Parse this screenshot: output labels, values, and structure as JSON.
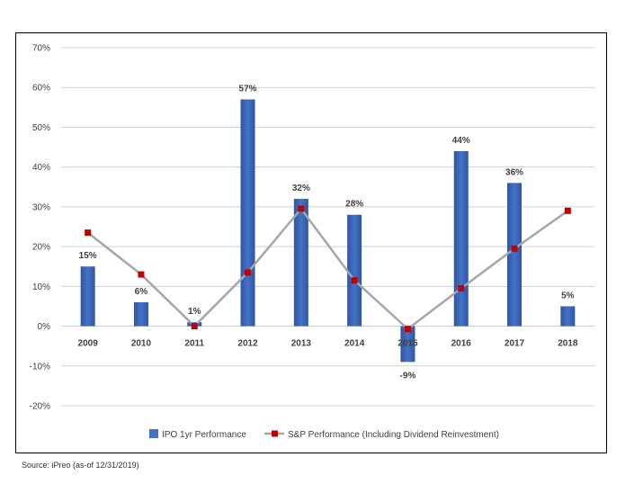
{
  "source_note": "Source: iPreo (as-of 12/31/2019)",
  "colors": {
    "bar": "#4472C4",
    "bar_dark": "#2F55A4",
    "line": "#A6A6A6",
    "marker": "#C00000",
    "grid": "#D0D0D0",
    "axis_text": "#404040"
  },
  "chart_data": {
    "type": "bar",
    "categories": [
      "2009",
      "2010",
      "2011",
      "2012",
      "2013",
      "2014",
      "2015",
      "2016",
      "2017",
      "2018"
    ],
    "ylim": [
      -0.2,
      0.7
    ],
    "yticks": [
      -0.2,
      -0.1,
      0,
      0.1,
      0.2,
      0.3,
      0.4,
      0.5,
      0.6,
      0.7
    ],
    "ytick_labels": [
      "-20%",
      "-10%",
      "0%",
      "10%",
      "20%",
      "30%",
      "40%",
      "50%",
      "60%",
      "70%"
    ],
    "grid": true,
    "legend_position": "bottom",
    "series": [
      {
        "name": "IPO 1yr Performance",
        "type": "bar",
        "values": [
          0.15,
          0.06,
          0.01,
          0.57,
          0.32,
          0.28,
          -0.09,
          0.44,
          0.36,
          0.05
        ],
        "data_labels": [
          "15%",
          "6%",
          "1%",
          "57%",
          "32%",
          "28%",
          "-9%",
          "44%",
          "36%",
          "5%"
        ]
      },
      {
        "name": "S&P Performance (Including Dividend Reinvestment)",
        "type": "line",
        "values": [
          0.235,
          0.13,
          0.0,
          0.135,
          0.295,
          0.115,
          -0.007,
          0.095,
          0.195,
          0.29
        ]
      }
    ]
  }
}
